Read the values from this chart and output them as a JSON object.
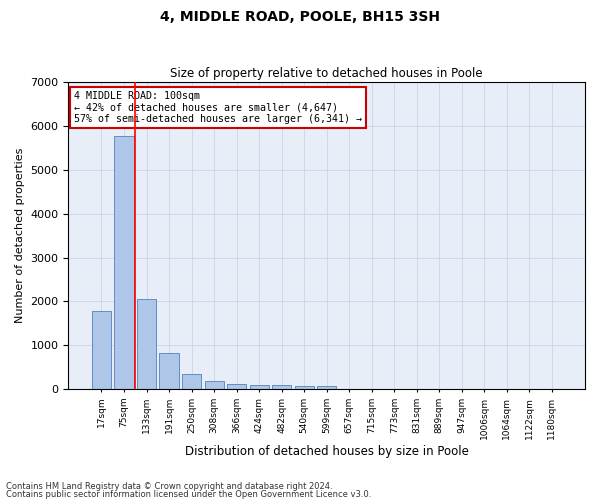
{
  "title": "4, MIDDLE ROAD, POOLE, BH15 3SH",
  "subtitle": "Size of property relative to detached houses in Poole",
  "xlabel": "Distribution of detached houses by size in Poole",
  "ylabel": "Number of detached properties",
  "categories": [
    "17sqm",
    "75sqm",
    "133sqm",
    "191sqm",
    "250sqm",
    "308sqm",
    "366sqm",
    "424sqm",
    "482sqm",
    "540sqm",
    "599sqm",
    "657sqm",
    "715sqm",
    "773sqm",
    "831sqm",
    "889sqm",
    "947sqm",
    "1006sqm",
    "1064sqm",
    "1122sqm",
    "1180sqm"
  ],
  "values": [
    1780,
    5780,
    2060,
    820,
    340,
    185,
    115,
    100,
    95,
    65,
    70,
    0,
    0,
    0,
    0,
    0,
    0,
    0,
    0,
    0,
    0
  ],
  "bar_color": "#aec6e8",
  "bar_edge_color": "#4f81bd",
  "red_line_x": 1.5,
  "annotation_text": "4 MIDDLE ROAD: 100sqm\n← 42% of detached houses are smaller (4,647)\n57% of semi-detached houses are larger (6,341) →",
  "annotation_box_color": "#ffffff",
  "annotation_box_edge": "#cc0000",
  "ylim": [
    0,
    7000
  ],
  "yticks": [
    0,
    1000,
    2000,
    3000,
    4000,
    5000,
    6000,
    7000
  ],
  "grid_color": "#d0d8e8",
  "background_color": "#e8eef8",
  "footer_line1": "Contains HM Land Registry data © Crown copyright and database right 2024.",
  "footer_line2": "Contains public sector information licensed under the Open Government Licence v3.0."
}
